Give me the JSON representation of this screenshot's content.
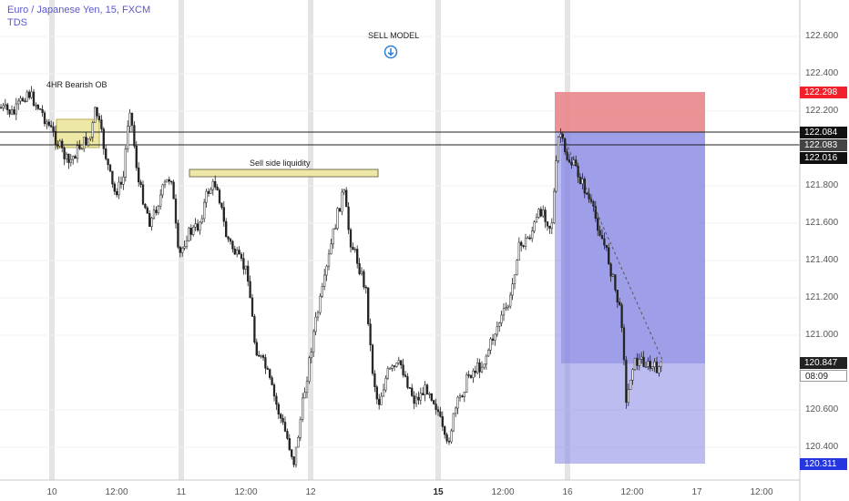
{
  "header": {
    "symbol_title": "Euro / Japanese Yen, 15, FXCM",
    "indicator": "TDS"
  },
  "annotations": {
    "sell_model": "SELL MODEL",
    "bearish_ob": "4HR Bearish OB",
    "sell_side_liquidity": "Sell side liquidity"
  },
  "y_axis": {
    "ticks": [
      "122.600",
      "122.400",
      "122.200",
      "121.800",
      "121.600",
      "121.400",
      "121.200",
      "121.000",
      "120.600",
      "120.400"
    ],
    "price_flags": {
      "stop": "122.298",
      "line_upper": "122.084",
      "line_lower": "122.083",
      "entry": "122.016",
      "current_price": "120.847",
      "countdown": "08:09",
      "target": "120.311"
    }
  },
  "x_axis": {
    "labels": [
      "10",
      "12:00",
      "11",
      "12:00",
      "12",
      "15",
      "12:00",
      "16",
      "12:00",
      "17",
      "12:00"
    ]
  },
  "colors": {
    "accent": "#5b58c9",
    "stop_zone": "#e8898c",
    "profit_zone": "#8f8fe6",
    "ob_zone": "#eee8a6",
    "candles": "#222222",
    "target_flag": "#2336e0",
    "stop_flag": "#f2202a"
  },
  "icons": {
    "sell_model_marker": "down-arrow-circle-icon"
  }
}
